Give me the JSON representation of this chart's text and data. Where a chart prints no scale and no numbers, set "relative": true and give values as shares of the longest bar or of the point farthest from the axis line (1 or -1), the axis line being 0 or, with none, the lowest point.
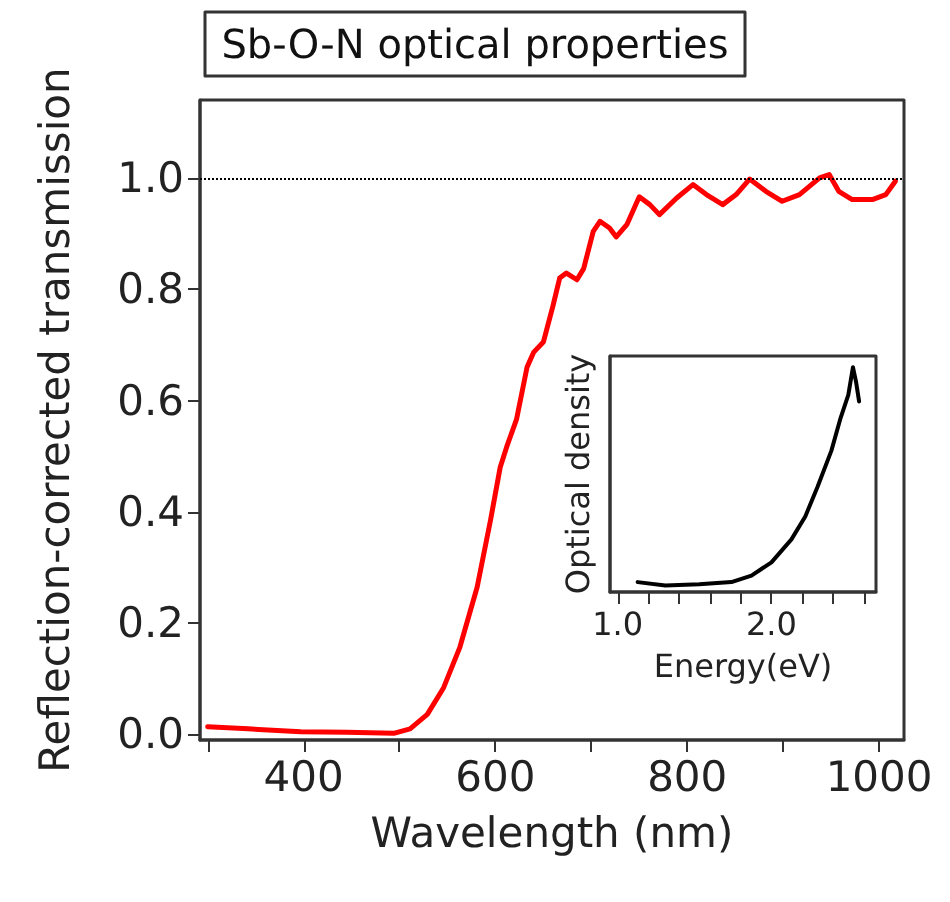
{
  "chart_data": [
    {
      "type": "line",
      "title": "Sb-O-N optical properties",
      "xlabel": "Wavelength (nm)",
      "ylabel": "Reflection-corrected transmission",
      "xlim": [
        292,
        1026
      ],
      "xticks": [
        {
          "value": 300,
          "label": null
        },
        400,
        {
          "value": 500,
          "label": null
        },
        600,
        {
          "value": 700,
          "label": null
        },
        800,
        {
          "value": 900,
          "label": null
        },
        1000
      ],
      "ylim": [
        -0.01,
        1.14
      ],
      "yticks": [
        {
          "value": 0,
          "label": "0.0"
        },
        {
          "value": 0.2,
          "label": "0.2"
        },
        {
          "value": 0.4,
          "label": "0.4"
        },
        {
          "value": 0.6,
          "label": "0.6"
        },
        {
          "value": 0.8,
          "label": "0.8"
        },
        {
          "value": 1,
          "label": "1.0"
        }
      ],
      "ref_lines": [
        {
          "axis": "y",
          "value": 1.0,
          "color": "#000000",
          "line_style": "dotted"
        }
      ],
      "marker": "none",
      "line_style": "solid",
      "series": [
        {
          "color": "#ff0000",
          "x": [
            300,
            342,
            397,
            445,
            494,
            511,
            529,
            546,
            563,
            581,
            595,
            605,
            612,
            622,
            633,
            640,
            650,
            660,
            667,
            674,
            685,
            692,
            702,
            709,
            719,
            726,
            737,
            750,
            761,
            771,
            789,
            806,
            820,
            837,
            851,
            865,
            882,
            899,
            917,
            938,
            948,
            958,
            972,
            993,
            1007,
            1017
          ],
          "values": [
            0.014,
            0.01,
            0.005,
            0.004,
            0.002,
            0.01,
            0.036,
            0.084,
            0.157,
            0.265,
            0.386,
            0.48,
            0.518,
            0.566,
            0.66,
            0.687,
            0.705,
            0.77,
            0.82,
            0.829,
            0.817,
            0.837,
            0.904,
            0.922,
            0.91,
            0.894,
            0.916,
            0.966,
            0.952,
            0.934,
            0.964,
            0.988,
            0.97,
            0.952,
            0.97,
            0.998,
            0.976,
            0.958,
            0.97,
            1.0,
            1.006,
            0.976,
            0.961,
            0.961,
            0.97,
            0.994
          ]
        }
      ]
    },
    {
      "type": "line",
      "xlabel": "Energy(eV)",
      "ylabel": "Optical density",
      "relative": true,
      "tick_labels": "x",
      "xlim": [
        0.95,
        2.68
      ],
      "xticks": [
        {
          "value": 1,
          "label": "1.0"
        },
        {
          "value": 1.2,
          "label": null
        },
        {
          "value": 1.4,
          "label": null
        },
        {
          "value": 1.6,
          "label": null
        },
        {
          "value": 1.8,
          "label": null
        },
        {
          "value": 2,
          "label": "2.0"
        },
        {
          "value": 2.2,
          "label": null
        },
        {
          "value": 2.4,
          "label": null
        },
        {
          "value": 2.6,
          "label": null
        }
      ],
      "marker": "none",
      "line_style": "solid",
      "series": [
        {
          "color": "#000000",
          "x": [
            1.13,
            1.31,
            1.53,
            1.74,
            1.87,
            2.0,
            2.13,
            2.22,
            2.3,
            2.39,
            2.45,
            2.5,
            2.53,
            2.55,
            2.57
          ],
          "values": [
            0.044,
            0.029,
            0.035,
            0.044,
            0.073,
            0.132,
            0.234,
            0.336,
            0.468,
            0.629,
            0.775,
            0.877,
            1.0,
            0.936,
            0.848
          ]
        }
      ]
    }
  ]
}
